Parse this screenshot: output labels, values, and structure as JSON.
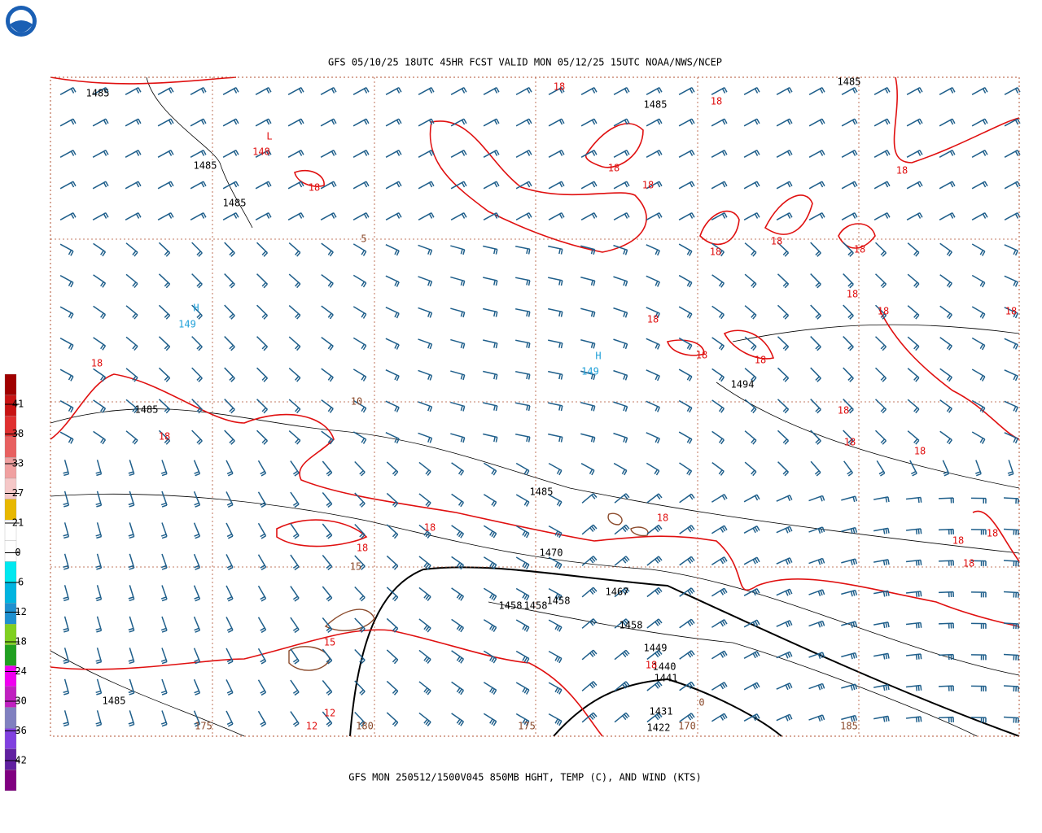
{
  "header": {
    "title": "GFS 05/10/25 18UTC 45HR FCST VALID MON 05/12/25 15UTC NOAA/NWS/NCEP"
  },
  "footer": {
    "caption": "GFS MON 250512/1500V045 850MB HGHT, TEMP (C), AND WIND (KTS)"
  },
  "legend": {
    "labels": [
      "41",
      "38",
      "33",
      "27",
      "21",
      "0",
      "-6",
      "-12",
      "-18",
      "-24",
      "-30",
      "-36",
      "-42"
    ],
    "colors": [
      "#a00000",
      "#c81414",
      "#e03030",
      "#e86060",
      "#f0a0a0",
      "#f5c8c8",
      "#e8b800",
      "#ffffff",
      "#ffffff",
      "#00e8f0",
      "#00b4e0",
      "#1e90d0",
      "#80d020",
      "#20a020",
      "#f000f0",
      "#c020c0",
      "#8080c0",
      "#8040e0",
      "#6020a0",
      "#800080"
    ]
  },
  "map": {
    "height_labels": [
      "1485",
      "1485",
      "1485",
      "1485",
      "1485",
      "1485",
      "1485",
      "1485",
      "1494",
      "1470",
      "1467",
      "1458",
      "1458",
      "1458",
      "1458",
      "1449",
      "1440",
      "1441",
      "1431",
      "1422"
    ],
    "temp_labels": [
      "18",
      "18",
      "18",
      "18",
      "18",
      "18",
      "18",
      "18",
      "18",
      "18",
      "18",
      "18",
      "18",
      "18",
      "18",
      "18",
      "18",
      "18",
      "18",
      "18",
      "18",
      "18",
      "18",
      "18",
      "18",
      "18",
      "18",
      "15",
      "12",
      "12"
    ],
    "thickness_labels": [
      "5",
      "10",
      "15",
      "175",
      "175",
      "180",
      "185",
      "170",
      "0"
    ],
    "centers": [
      {
        "symbol": "L",
        "value": "148"
      },
      {
        "symbol": "H",
        "value": "149"
      },
      {
        "symbol": "H",
        "value": "149"
      }
    ]
  }
}
